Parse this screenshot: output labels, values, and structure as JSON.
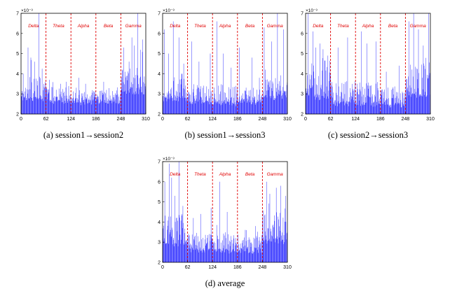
{
  "chart_data": [
    {
      "type": "bar",
      "caption": "(a) session1→session2",
      "xlim": [
        0,
        310
      ],
      "ylim": [
        2,
        7
      ],
      "xticks": [
        0,
        62,
        124,
        186,
        248,
        310
      ],
      "yticks": [
        2,
        3,
        4,
        5,
        6,
        7
      ],
      "y_exponent_label": "×10⁻³",
      "bands": [
        {
          "label": "Delta",
          "start": 0,
          "end": 62
        },
        {
          "label": "Theta",
          "start": 62,
          "end": 124
        },
        {
          "label": "Alpha",
          "start": 124,
          "end": 186
        },
        {
          "label": "Beta",
          "start": 186,
          "end": 248
        },
        {
          "label": "Gamma",
          "start": 248,
          "end": 310
        }
      ],
      "band_boundaries": [
        62,
        124,
        186,
        248
      ],
      "profile": {
        "baseline": [
          2.75,
          2.6,
          2.55,
          2.6,
          3.0
        ],
        "spread": [
          0.7,
          0.45,
          0.4,
          0.45,
          0.85
        ]
      },
      "peaks": [
        [
          5,
          4.0
        ],
        [
          17,
          5.3
        ],
        [
          24,
          4.8
        ],
        [
          33,
          4.6
        ],
        [
          44,
          7.0
        ],
        [
          70,
          3.7
        ],
        [
          98,
          3.5
        ],
        [
          112,
          3.6
        ],
        [
          143,
          3.8
        ],
        [
          160,
          3.5
        ],
        [
          205,
          3.6
        ],
        [
          255,
          5.3
        ],
        [
          268,
          4.6
        ],
        [
          275,
          5.8
        ],
        [
          281,
          5.4
        ],
        [
          290,
          7.0
        ],
        [
          302,
          5.7
        ]
      ]
    },
    {
      "type": "bar",
      "caption": "(b) session1→session3",
      "xlim": [
        0,
        310
      ],
      "ylim": [
        2,
        7
      ],
      "xticks": [
        0,
        62,
        124,
        186,
        248,
        310
      ],
      "yticks": [
        2,
        3,
        4,
        5,
        6,
        7
      ],
      "y_exponent_label": "×10⁻³",
      "bands": [
        {
          "label": "Delta",
          "start": 0,
          "end": 62
        },
        {
          "label": "Theta",
          "start": 62,
          "end": 124
        },
        {
          "label": "Alpha",
          "start": 124,
          "end": 186
        },
        {
          "label": "Beta",
          "start": 186,
          "end": 248
        },
        {
          "label": "Gamma",
          "start": 248,
          "end": 310
        }
      ],
      "band_boundaries": [
        62,
        124,
        186,
        248
      ],
      "profile": {
        "baseline": [
          2.7,
          2.55,
          2.5,
          2.55,
          2.8
        ],
        "spread": [
          0.8,
          0.55,
          0.55,
          0.5,
          0.9
        ]
      },
      "peaks": [
        [
          4,
          6.2
        ],
        [
          14,
          5.0
        ],
        [
          26,
          6.6
        ],
        [
          40,
          5.8
        ],
        [
          52,
          4.5
        ],
        [
          72,
          5.6
        ],
        [
          90,
          4.6
        ],
        [
          118,
          5.0
        ],
        [
          135,
          6.6
        ],
        [
          150,
          5.0
        ],
        [
          170,
          4.3
        ],
        [
          190,
          5.3
        ],
        [
          222,
          4.8
        ],
        [
          240,
          3.8
        ],
        [
          252,
          6.3
        ],
        [
          270,
          5.6
        ],
        [
          285,
          7.0
        ],
        [
          300,
          6.2
        ]
      ]
    },
    {
      "type": "bar",
      "caption": "(c) session2→session3",
      "xlim": [
        0,
        310
      ],
      "ylim": [
        2,
        7
      ],
      "xticks": [
        0,
        62,
        124,
        186,
        248,
        310
      ],
      "yticks": [
        2,
        3,
        4,
        5,
        6,
        7
      ],
      "y_exponent_label": "×10⁻³",
      "bands": [
        {
          "label": "Delta",
          "start": 0,
          "end": 62
        },
        {
          "label": "Theta",
          "start": 62,
          "end": 124
        },
        {
          "label": "Alpha",
          "start": 124,
          "end": 186
        },
        {
          "label": "Beta",
          "start": 186,
          "end": 248
        },
        {
          "label": "Gamma",
          "start": 248,
          "end": 310
        }
      ],
      "band_boundaries": [
        62,
        124,
        186,
        248
      ],
      "profile": {
        "baseline": [
          2.8,
          2.5,
          2.45,
          2.4,
          2.9
        ],
        "spread": [
          1.2,
          0.7,
          0.75,
          0.6,
          1.1
        ]
      },
      "peaks": [
        [
          6,
          7.0
        ],
        [
          18,
          6.1
        ],
        [
          25,
          5.3
        ],
        [
          35,
          5.5
        ],
        [
          55,
          4.9
        ],
        [
          80,
          5.3
        ],
        [
          104,
          5.8
        ],
        [
          138,
          6.1
        ],
        [
          152,
          5.5
        ],
        [
          175,
          5.6
        ],
        [
          200,
          4.1
        ],
        [
          232,
          4.4
        ],
        [
          256,
          6.6
        ],
        [
          268,
          7.0
        ],
        [
          280,
          6.2
        ],
        [
          292,
          5.4
        ],
        [
          305,
          7.0
        ]
      ]
    },
    {
      "type": "bar",
      "caption": "(d) average",
      "xlim": [
        0,
        310
      ],
      "ylim": [
        2,
        7
      ],
      "xticks": [
        0,
        62,
        124,
        186,
        248,
        310
      ],
      "yticks": [
        2,
        3,
        4,
        5,
        6,
        7
      ],
      "y_exponent_label": "×10⁻³",
      "bands": [
        {
          "label": "Delta",
          "start": 0,
          "end": 62
        },
        {
          "label": "Theta",
          "start": 62,
          "end": 124
        },
        {
          "label": "Alpha",
          "start": 124,
          "end": 186
        },
        {
          "label": "Beta",
          "start": 186,
          "end": 248
        },
        {
          "label": "Gamma",
          "start": 248,
          "end": 310
        }
      ],
      "band_boundaries": [
        62,
        124,
        186,
        248
      ],
      "profile": {
        "baseline": [
          2.85,
          2.6,
          2.55,
          2.55,
          3.0
        ],
        "spread": [
          1.0,
          0.55,
          0.55,
          0.5,
          0.9
        ]
      },
      "peaks": [
        [
          5,
          6.0
        ],
        [
          16,
          6.9
        ],
        [
          22,
          6.2
        ],
        [
          30,
          5.3
        ],
        [
          40,
          7.0
        ],
        [
          50,
          4.8
        ],
        [
          76,
          4.2
        ],
        [
          94,
          4.4
        ],
        [
          120,
          4.7
        ],
        [
          142,
          6.0
        ],
        [
          160,
          4.5
        ],
        [
          208,
          3.6
        ],
        [
          230,
          3.8
        ],
        [
          258,
          6.0
        ],
        [
          266,
          5.4
        ],
        [
          282,
          5.7
        ],
        [
          293,
          5.8
        ],
        [
          305,
          5.3
        ]
      ]
    }
  ]
}
